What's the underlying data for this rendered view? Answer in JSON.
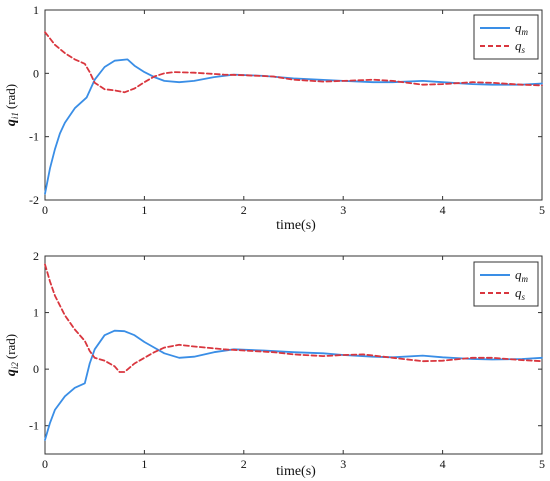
{
  "chart_data": [
    {
      "type": "line",
      "ylabel": "q₁₁ (rad)",
      "ylabel_main": "q",
      "ylabel_sub": "i1",
      "ylabel_unit": "(rad)",
      "xlabel": "time(s)",
      "xlim": [
        0,
        5
      ],
      "ylim": [
        -2,
        1
      ],
      "xticks": [
        "0",
        "1",
        "2",
        "3",
        "4",
        "5"
      ],
      "yticks": [
        "-2",
        "-1",
        "0",
        "1"
      ],
      "legend_position": "top-right",
      "series": [
        {
          "name": "q_m",
          "name_main": "q",
          "name_sub": "m",
          "color": "#3a8ee6",
          "style": "solid",
          "x": [
            0,
            0.05,
            0.1,
            0.15,
            0.2,
            0.3,
            0.42,
            0.5,
            0.6,
            0.7,
            0.83,
            0.9,
            1.0,
            1.1,
            1.2,
            1.35,
            1.5,
            1.7,
            1.9,
            2.2,
            2.5,
            3.0,
            3.3,
            3.5,
            3.8,
            4.0,
            4.3,
            4.5,
            4.8,
            5.0
          ],
          "y": [
            -1.9,
            -1.5,
            -1.2,
            -0.95,
            -0.78,
            -0.55,
            -0.38,
            -0.1,
            0.1,
            0.2,
            0.22,
            0.12,
            0.02,
            -0.06,
            -0.12,
            -0.14,
            -0.12,
            -0.06,
            -0.02,
            -0.04,
            -0.08,
            -0.12,
            -0.14,
            -0.14,
            -0.12,
            -0.14,
            -0.17,
            -0.18,
            -0.18,
            -0.16
          ]
        },
        {
          "name": "q_s",
          "name_main": "q",
          "name_sub": "s",
          "color": "#d9363e",
          "style": "dashed",
          "x": [
            0,
            0.05,
            0.1,
            0.2,
            0.3,
            0.4,
            0.45,
            0.5,
            0.6,
            0.7,
            0.8,
            0.9,
            1.0,
            1.1,
            1.2,
            1.3,
            1.5,
            1.8,
            2.0,
            2.3,
            2.5,
            2.8,
            3.0,
            3.3,
            3.5,
            3.8,
            4.0,
            4.3,
            4.5,
            4.8,
            5.0
          ],
          "y": [
            0.65,
            0.55,
            0.45,
            0.32,
            0.22,
            0.15,
            0.02,
            -0.15,
            -0.25,
            -0.27,
            -0.3,
            -0.24,
            -0.14,
            -0.05,
            0.0,
            0.02,
            0.01,
            -0.02,
            -0.03,
            -0.05,
            -0.1,
            -0.13,
            -0.12,
            -0.1,
            -0.12,
            -0.18,
            -0.17,
            -0.14,
            -0.15,
            -0.18,
            -0.19
          ]
        }
      ]
    },
    {
      "type": "line",
      "ylabel": "q₁₂ (rad)",
      "ylabel_main": "q",
      "ylabel_sub": "i2",
      "ylabel_unit": "(rad)",
      "xlabel": "time(s)",
      "xlim": [
        0,
        5
      ],
      "ylim": [
        -1.5,
        2
      ],
      "xticks": [
        "0",
        "1",
        "2",
        "3",
        "4",
        "5"
      ],
      "yticks": [
        "-1",
        "0",
        "1",
        "2"
      ],
      "legend_position": "top-right",
      "series": [
        {
          "name": "q_m",
          "name_main": "q",
          "name_sub": "m",
          "color": "#3a8ee6",
          "style": "solid",
          "x": [
            0,
            0.05,
            0.1,
            0.2,
            0.3,
            0.4,
            0.45,
            0.5,
            0.6,
            0.7,
            0.8,
            0.9,
            1.0,
            1.1,
            1.2,
            1.35,
            1.5,
            1.7,
            1.9,
            2.2,
            2.5,
            2.8,
            3.0,
            3.3,
            3.5,
            3.8,
            4.0,
            4.3,
            4.5,
            4.8,
            5.0
          ],
          "y": [
            -1.25,
            -0.95,
            -0.72,
            -0.48,
            -0.33,
            -0.25,
            0.1,
            0.35,
            0.6,
            0.68,
            0.67,
            0.6,
            0.48,
            0.38,
            0.28,
            0.2,
            0.22,
            0.3,
            0.35,
            0.33,
            0.3,
            0.28,
            0.25,
            0.22,
            0.21,
            0.24,
            0.21,
            0.18,
            0.17,
            0.18,
            0.2
          ]
        },
        {
          "name": "q_s",
          "name_main": "q",
          "name_sub": "s",
          "color": "#d9363e",
          "style": "dashed",
          "x": [
            0,
            0.05,
            0.1,
            0.2,
            0.3,
            0.4,
            0.45,
            0.5,
            0.6,
            0.7,
            0.75,
            0.8,
            0.9,
            1.0,
            1.1,
            1.2,
            1.35,
            1.5,
            1.8,
            2.0,
            2.3,
            2.5,
            2.8,
            3.0,
            3.2,
            3.5,
            3.8,
            4.0,
            4.3,
            4.5,
            4.8,
            5.0
          ],
          "y": [
            1.85,
            1.55,
            1.3,
            0.95,
            0.7,
            0.5,
            0.32,
            0.2,
            0.15,
            0.05,
            -0.05,
            -0.05,
            0.1,
            0.2,
            0.3,
            0.38,
            0.43,
            0.4,
            0.35,
            0.33,
            0.3,
            0.26,
            0.23,
            0.25,
            0.26,
            0.2,
            0.14,
            0.15,
            0.2,
            0.2,
            0.16,
            0.14
          ]
        }
      ]
    }
  ]
}
